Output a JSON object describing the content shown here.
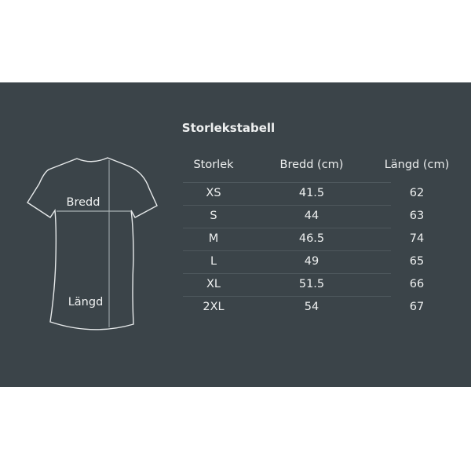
{
  "title": "Storlekstabell",
  "diagram": {
    "width_label": "Bredd",
    "length_label": "Längd"
  },
  "table": {
    "headers": [
      "Storlek",
      "Bredd (cm)",
      "Längd (cm)"
    ],
    "rows": [
      [
        "XS",
        "41.5",
        "62"
      ],
      [
        "S",
        "44",
        "63"
      ],
      [
        "M",
        "46.5",
        "74"
      ],
      [
        "L",
        "49",
        "65"
      ],
      [
        "XL",
        "51.5",
        "66"
      ],
      [
        "2XL",
        "54",
        "67"
      ]
    ]
  },
  "colors": {
    "background": "#3b4449",
    "text": "#eef0f0"
  }
}
